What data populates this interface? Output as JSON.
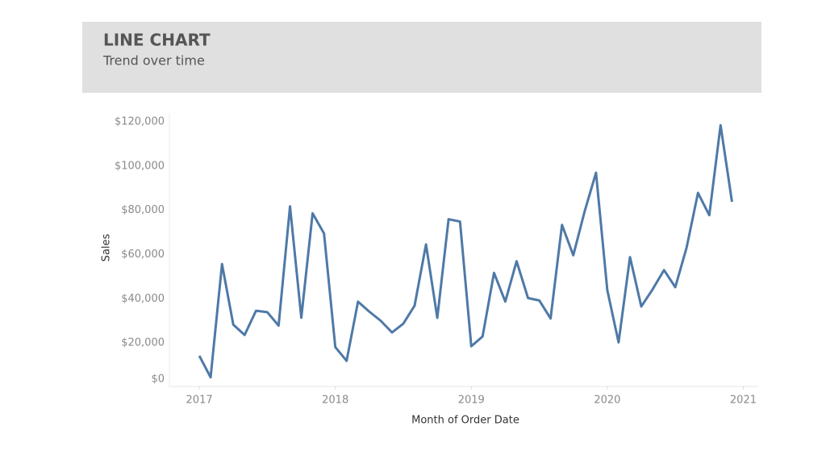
{
  "chart_data": {
    "type": "line",
    "title": "LINE CHART",
    "subtitle": "Trend over time",
    "x_label": "Month of Order Date",
    "y_label": "Sales",
    "x": [
      2017.0,
      2017.083,
      2017.167,
      2017.25,
      2017.333,
      2017.417,
      2017.5,
      2017.583,
      2017.667,
      2017.75,
      2017.833,
      2017.917,
      2018.0,
      2018.083,
      2018.167,
      2018.25,
      2018.333,
      2018.417,
      2018.5,
      2018.583,
      2018.667,
      2018.75,
      2018.833,
      2018.917,
      2019.0,
      2019.083,
      2019.167,
      2019.25,
      2019.333,
      2019.417,
      2019.5,
      2019.583,
      2019.667,
      2019.75,
      2019.833,
      2019.917,
      2020.0,
      2020.083,
      2020.167,
      2020.25,
      2020.333,
      2020.417,
      2020.5,
      2020.583,
      2020.667,
      2020.75,
      2020.833,
      2020.917
    ],
    "series": [
      {
        "name": "Sales",
        "color": "#4e79a7",
        "values": [
          14236,
          4520,
          55691,
          28295,
          23648,
          34595,
          33946,
          27909,
          81777,
          31453,
          78629,
          69546,
          18174,
          11951,
          38726,
          34195,
          30132,
          24797,
          28765,
          36898,
          64596,
          31405,
          75973,
          74920,
          18542,
          22979,
          51716,
          38750,
          56988,
          40345,
          39262,
          31115,
          73410,
          59688,
          79412,
          96999,
          43971,
          20301,
          58872,
          36522,
          44261,
          52981,
          45264,
          63121,
          87867,
          77777,
          118448,
          83829
        ]
      }
    ],
    "xlim": [
      2016.78,
      2021.11
    ],
    "xticks": [
      2017,
      2018,
      2019,
      2020,
      2021
    ],
    "ylim": [
      0,
      124000
    ],
    "yticks": [
      {
        "value": 0,
        "label": "$0"
      },
      {
        "value": 20000,
        "label": "$20,000"
      },
      {
        "value": 40000,
        "label": "$40,000"
      },
      {
        "value": 60000,
        "label": "$60,000"
      },
      {
        "value": 80000,
        "label": "$80,000"
      },
      {
        "value": 100000,
        "label": "$100,000"
      },
      {
        "value": 120000,
        "label": "$120,000"
      }
    ],
    "grid": false
  }
}
